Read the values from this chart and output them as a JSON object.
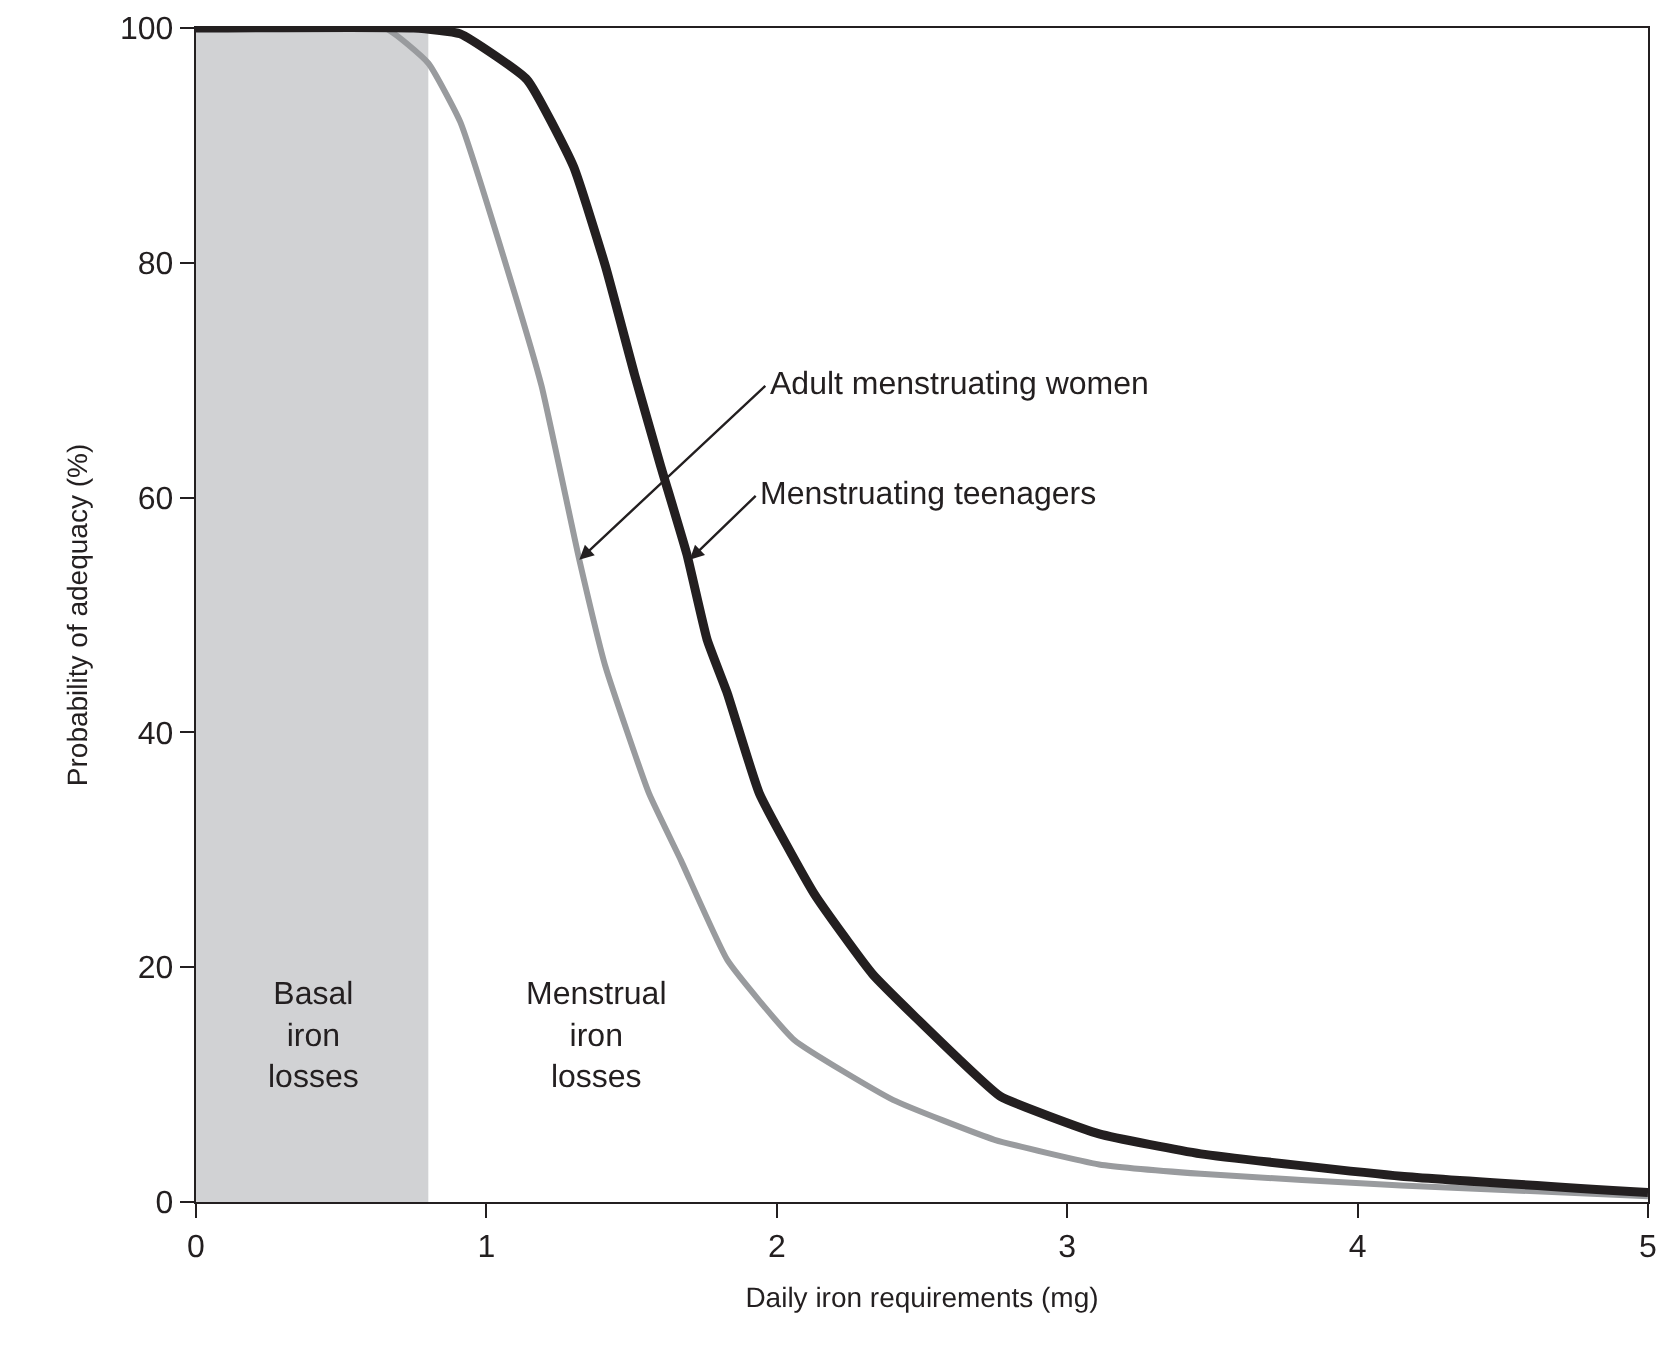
{
  "chart_data": {
    "type": "line",
    "xlabel": "Daily iron requirements (mg)",
    "ylabel": "Probability of adequacy (%)",
    "xlim": [
      0,
      5
    ],
    "xticks": [
      0,
      1,
      2,
      3,
      4,
      5
    ],
    "ylim": [
      0,
      100
    ],
    "yticks": [
      0,
      20,
      40,
      60,
      80,
      100
    ],
    "grid": false,
    "marker": "none",
    "line_style": "solid",
    "series": [
      {
        "color": "#999b9e",
        "x": [
          0,
          0.65,
          0.8,
          0.91,
          1.09,
          1.19,
          1.32,
          1.41,
          1.56,
          1.67,
          1.83,
          2.06,
          2.4,
          2.75,
          3.11,
          3.46,
          4.15,
          5
        ],
        "values": [
          100,
          100,
          97,
          92,
          78,
          69.5,
          54.7,
          45.6,
          34.8,
          29.1,
          20.6,
          13.8,
          8.7,
          5.3,
          3.2,
          2.4,
          1.4,
          0.5
        ]
      },
      {
        "color": "#231f20",
        "x": [
          0,
          0.75,
          0.91,
          1.14,
          1.3,
          1.41,
          1.51,
          1.6,
          1.69,
          1.76,
          1.83,
          1.94,
          2.13,
          2.33,
          2.63,
          2.77,
          3.11,
          3.46,
          4.15,
          5
        ],
        "values": [
          100,
          100,
          99.5,
          95.6,
          88.2,
          79.7,
          70.5,
          62.7,
          55.2,
          47.9,
          43.3,
          34.8,
          26.2,
          19.4,
          12.1,
          9,
          5.8,
          4.1,
          2.2,
          0.8
        ]
      }
    ],
    "bands": [
      {
        "axis": "x",
        "from": 0,
        "to": 0.8,
        "label": "Basal\niron\nlosses",
        "color": "#d1d2d4"
      }
    ],
    "annotations": [
      {
        "text": "Adult menstruating women",
        "x": 1.32,
        "y": 54.7
      },
      {
        "text": "Menstruating teenagers",
        "x": 1.7,
        "y": 54.7
      },
      "Menstrual\niron\nlosses"
    ]
  }
}
